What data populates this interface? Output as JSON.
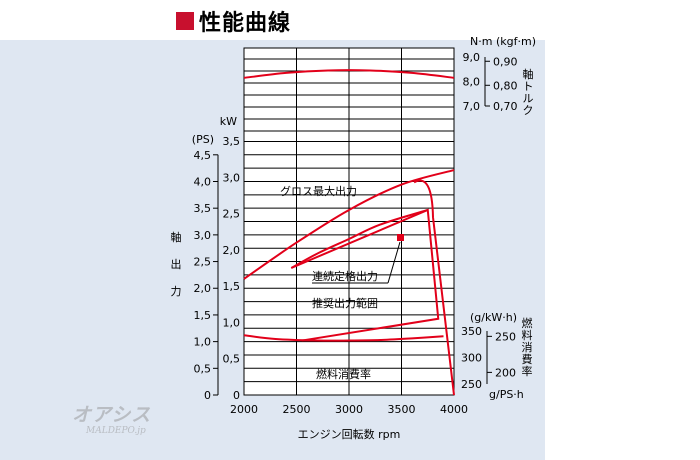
{
  "title": "性能曲線",
  "watermark": {
    "logo_text": "オアシス",
    "url": "MALDEPO.jp"
  },
  "colors": {
    "curve": "#e2001a",
    "panel": "#dfe7f2",
    "grid": "#000000",
    "heading_square": "#c8102e"
  },
  "chart_data": {
    "type": "line",
    "xlabel": "エンジン回転数 rpm",
    "x_ticks": [
      "2000",
      "2500",
      "3000",
      "3500",
      "4000"
    ],
    "xlim": [
      2000,
      4000
    ],
    "power": {
      "ylabel": "軸出力",
      "unit_ps": "(PS)",
      "unit_kw": "kW",
      "ps_ticks": [
        "0",
        "0,5",
        "1,0",
        "1,5",
        "2,0",
        "2,5",
        "3,0",
        "3,5",
        "4,0",
        "4,5"
      ],
      "kw_ticks": [
        "0",
        "0,5",
        "1,0",
        "1,5",
        "2,0",
        "2,5",
        "3,0",
        "3,5"
      ],
      "ylim_kw": [
        0,
        3.5
      ]
    },
    "torque": {
      "ylabel": "軸トルク",
      "unit_nm": "N·m",
      "unit_kgfm": "(kgf·m)",
      "nm_ticks": [
        "7,0",
        "8,0",
        "9,0"
      ],
      "kgfm_ticks": [
        "0,70",
        "0,80",
        "0,90"
      ],
      "ylim_nm": [
        7.0,
        9.0
      ]
    },
    "fuel": {
      "ylabel": "燃料消費率",
      "unit_gkwh": "(g/kW·h)",
      "unit_gpsh": "g/PS·h",
      "gkwh_ticks": [
        "250",
        "300",
        "350"
      ],
      "gpsh_ticks": [
        "200",
        "250"
      ],
      "ylim_gkwh": [
        250,
        350
      ]
    },
    "annotations": {
      "gross": "グロス最大出力",
      "continuous": "連続定格出力",
      "recommended": "推奨出力範囲",
      "fuel": "燃料消費率"
    },
    "series": [
      {
        "name": "グロス最大出力",
        "axis": "kw",
        "x": [
          2000,
          2500,
          3000,
          3500,
          4000
        ],
        "values": [
          1.6,
          2.1,
          2.55,
          2.9,
          3.1
        ]
      },
      {
        "name": "連続定格出力",
        "axis": "kw",
        "x": [
          2450,
          2700,
          3000,
          3300,
          3750
        ],
        "values": [
          1.75,
          1.95,
          2.15,
          2.35,
          2.55
        ]
      },
      {
        "name": "軸トルク",
        "axis": "nm",
        "x": [
          2000,
          2400,
          2800,
          3200,
          3600,
          4000
        ],
        "values": [
          8.15,
          8.35,
          8.45,
          8.45,
          8.35,
          8.15
        ]
      },
      {
        "name": "燃料消費率",
        "axis": "gkwh",
        "x": [
          2000,
          2300,
          2700,
          3000,
          3300,
          3600,
          3900
        ],
        "values": [
          342,
          335,
          332,
          332,
          333,
          336,
          340
        ]
      }
    ],
    "recommended_range": {
      "x": [
        2450,
        3750,
        3850,
        2550
      ],
      "kw": [
        1.75,
        2.55,
        1.05,
        0.75
      ]
    },
    "grid": true
  }
}
